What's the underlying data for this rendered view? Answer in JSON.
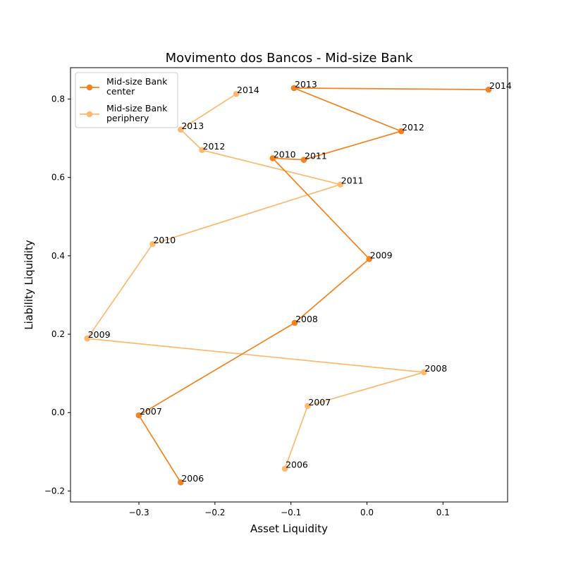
{
  "chart_data": {
    "type": "line",
    "title": "Movimento dos Bancos - Mid-size Bank",
    "xlabel": "Asset Liquidity",
    "ylabel": "Liability Liquidity",
    "xlim": [
      -0.39,
      0.185
    ],
    "ylim": [
      -0.228,
      0.88
    ],
    "xticks": [
      -0.3,
      -0.2,
      -0.1,
      0.0,
      0.1
    ],
    "xtick_labels": [
      "−0.3",
      "−0.2",
      "−0.1",
      "0.0",
      "0.1"
    ],
    "yticks": [
      -0.2,
      0.0,
      0.2,
      0.4,
      0.6,
      0.8
    ],
    "ytick_labels": [
      "−0.2",
      "0.0",
      "0.2",
      "0.4",
      "0.6",
      "0.8"
    ],
    "grid": false,
    "legend_position": "top-left",
    "series": [
      {
        "name": "Mid-size Bank\ncenter",
        "legend_lines": [
          "Mid-size Bank",
          "center"
        ],
        "color": "#f5821f",
        "points": [
          {
            "label": "2006",
            "x": -0.245,
            "y": -0.178
          },
          {
            "label": "2007",
            "x": -0.3,
            "y": -0.007
          },
          {
            "label": "2008",
            "x": -0.095,
            "y": 0.229
          },
          {
            "label": "2009",
            "x": 0.003,
            "y": 0.392
          },
          {
            "label": "2010",
            "x": -0.124,
            "y": 0.649
          },
          {
            "label": "2011",
            "x": -0.083,
            "y": 0.645
          },
          {
            "label": "2012",
            "x": 0.045,
            "y": 0.718
          },
          {
            "label": "2013",
            "x": -0.096,
            "y": 0.828
          },
          {
            "label": "2014",
            "x": 0.16,
            "y": 0.824
          }
        ]
      },
      {
        "name": "Mid-size Bank\nperiphery",
        "legend_lines": [
          "Mid-size Bank",
          "periphery"
        ],
        "color": "#fdb96f",
        "points": [
          {
            "label": "2006",
            "x": -0.108,
            "y": -0.143
          },
          {
            "label": "2007",
            "x": -0.078,
            "y": 0.017
          },
          {
            "label": "2008",
            "x": 0.075,
            "y": 0.103
          },
          {
            "label": "2009",
            "x": -0.368,
            "y": 0.189
          },
          {
            "label": "2010",
            "x": -0.282,
            "y": 0.43
          },
          {
            "label": "2011",
            "x": -0.035,
            "y": 0.582
          },
          {
            "label": "2012",
            "x": -0.217,
            "y": 0.67
          },
          {
            "label": "2013",
            "x": -0.245,
            "y": 0.722
          },
          {
            "label": "2014",
            "x": -0.172,
            "y": 0.813
          }
        ]
      }
    ]
  }
}
